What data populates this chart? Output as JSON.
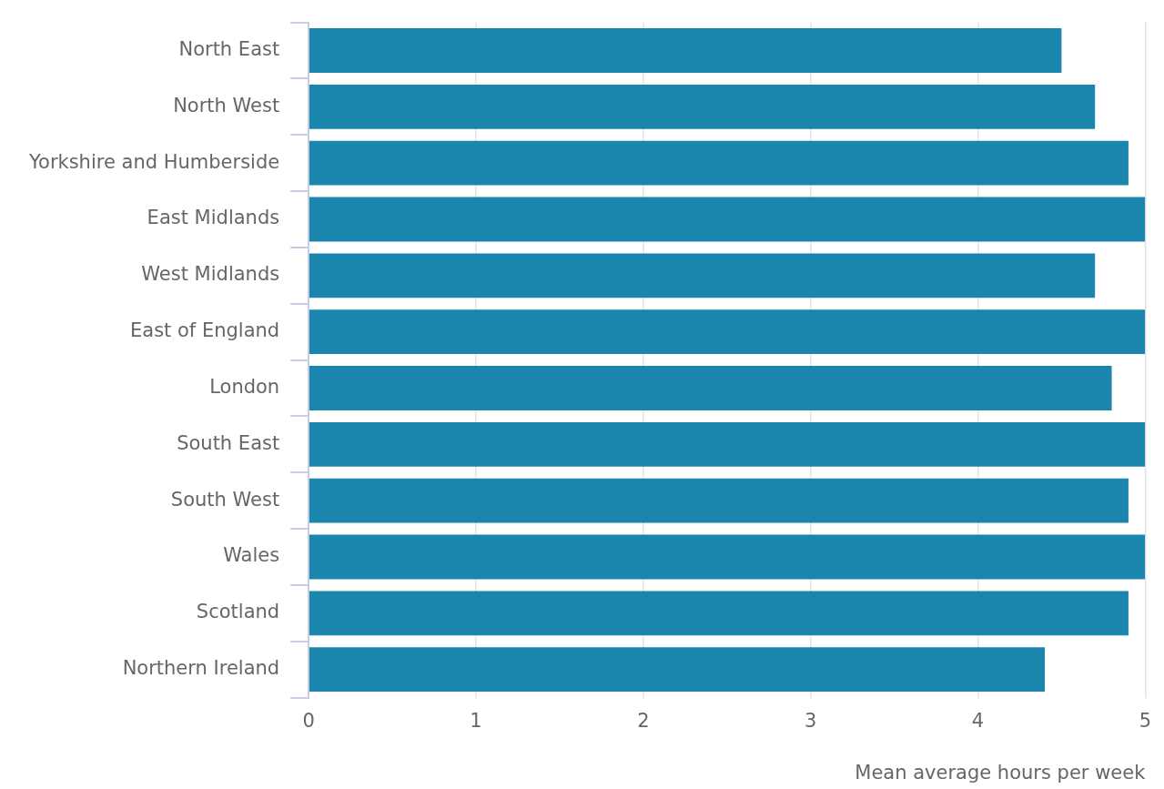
{
  "chart_data": {
    "type": "bar",
    "orientation": "horizontal",
    "xlabel": "Mean average hours per week",
    "categories": [
      "North East",
      "North West",
      "Yorkshire and Humberside",
      "East Midlands",
      "West Midlands",
      "East of England",
      "London",
      "South East",
      "South West",
      "Wales",
      "Scotland",
      "Northern Ireland"
    ],
    "values": [
      4.5,
      4.7,
      4.9,
      5.0,
      4.7,
      5.0,
      4.8,
      5.0,
      4.9,
      5.0,
      4.9,
      4.4
    ],
    "color": "#1a85ad",
    "xlim": [
      0,
      5
    ],
    "xticks": [
      0,
      1,
      2,
      3,
      4,
      5
    ],
    "grid": "x",
    "legend": false
  }
}
